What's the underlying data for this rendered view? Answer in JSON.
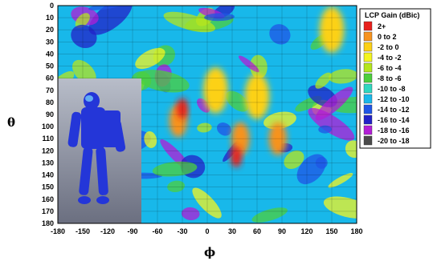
{
  "chart_data": {
    "type": "heatmap",
    "xlabel": "ϕ",
    "ylabel": "θ",
    "x_ticks": [
      "-180",
      "-150",
      "-120",
      "-90",
      "-60",
      "-30",
      "0",
      "30",
      "60",
      "90",
      "120",
      "150",
      "180"
    ],
    "y_ticks": [
      "0",
      "10",
      "20",
      "30",
      "40",
      "50",
      "60",
      "70",
      "80",
      "90",
      "100",
      "110",
      "120",
      "130",
      "140",
      "150",
      "160",
      "170",
      "180"
    ],
    "xlim": [
      -180,
      180
    ],
    "ylim": [
      0,
      180
    ],
    "grid": true,
    "legend": {
      "title": "LCP Gain (dBic)",
      "placement": "right",
      "bins": [
        {
          "label": "2+",
          "color": "#e8201c"
        },
        {
          "label": "0 to 2",
          "color": "#f7931e"
        },
        {
          "label": "-2 to 0",
          "color": "#fcd116"
        },
        {
          "label": "-4 to -2",
          "color": "#f4f520"
        },
        {
          "label": "-6 to -4",
          "color": "#b5e61d"
        },
        {
          "label": "-8 to -6",
          "color": "#4ccf3d"
        },
        {
          "label": "-10 to -8",
          "color": "#2fd7c0"
        },
        {
          "label": "-12 to -10",
          "color": "#18b8ea"
        },
        {
          "label": "-14 to -12",
          "color": "#1f56e6"
        },
        {
          "label": "-16 to -14",
          "color": "#2222c8"
        },
        {
          "label": "-18 to -16",
          "color": "#b21ed6"
        },
        {
          "label": "-20 to -18",
          "color": "#4a4a4a"
        }
      ]
    },
    "hotspots": [
      {
        "phi": 35,
        "theta": 125,
        "gain_bin": "2+"
      },
      {
        "phi": 40,
        "theta": 110,
        "gain_bin": "0 to 2"
      },
      {
        "phi": -30,
        "theta": 85,
        "gain_bin": "2+"
      },
      {
        "phi": -35,
        "theta": 95,
        "gain_bin": "0 to 2"
      },
      {
        "phi": 85,
        "theta": 110,
        "gain_bin": "0 to 2"
      },
      {
        "phi": 10,
        "theta": 70,
        "gain_bin": "-2 to 0"
      },
      {
        "phi": 60,
        "theta": 75,
        "gain_bin": "-2 to 0"
      },
      {
        "phi": 150,
        "theta": 20,
        "gain_bin": "-2 to 0"
      }
    ],
    "inset_image": "astronaut-model"
  },
  "colors": {
    "background_field": "#18b8ea",
    "inset_gradient_top": "#b8bdc9",
    "inset_gradient_bottom": "#6b6f80",
    "model_color": "#2436d8"
  }
}
